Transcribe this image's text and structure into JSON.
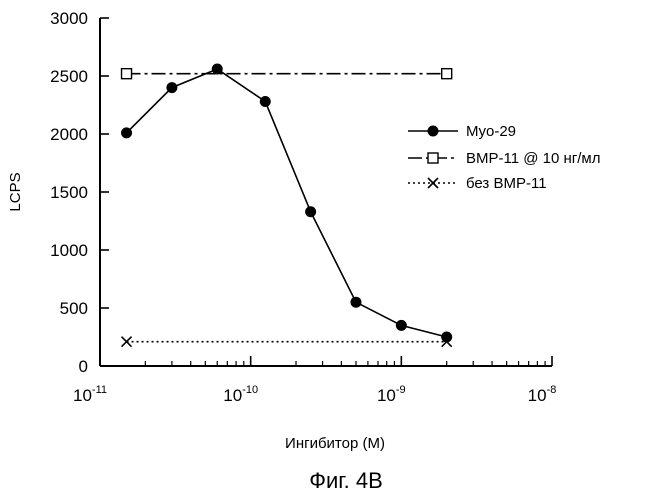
{
  "chart_data": {
    "type": "line",
    "title": "",
    "caption": "Фиг. 4В",
    "xlabel": "Ингибитор (М)",
    "ylabel": "LCPS",
    "xscale": "log",
    "xlim": [
      1e-11,
      1e-08
    ],
    "ylim": [
      0,
      3000
    ],
    "yticks": [
      0,
      500,
      1000,
      1500,
      2000,
      2500,
      3000
    ],
    "xtick_labels": [
      {
        "base": "10",
        "exp": "-11",
        "value": 1e-11
      },
      {
        "base": "10",
        "exp": "-10",
        "value": 1e-10
      },
      {
        "base": "10",
        "exp": "-9",
        "value": 1e-09
      },
      {
        "base": "10",
        "exp": "-8",
        "value": 1e-08
      }
    ],
    "legend_position": "right",
    "series": [
      {
        "name": "Myo-29",
        "marker": "filled-circle",
        "line": "solid",
        "x": [
          1.5e-11,
          3e-11,
          6e-11,
          1.25e-10,
          2.5e-10,
          5e-10,
          1e-09,
          2e-09
        ],
        "y": [
          2010,
          2400,
          2560,
          2280,
          1330,
          550,
          350,
          250
        ]
      },
      {
        "name": "BMP-11 @ 10 нг/мл",
        "marker": "open-square",
        "line": "dash-dot",
        "x": [
          1.5e-11,
          2e-09
        ],
        "y": [
          2520,
          2520
        ]
      },
      {
        "name": "без BMP-11",
        "marker": "x",
        "line": "dotted",
        "x": [
          1.5e-11,
          2e-09
        ],
        "y": [
          210,
          210
        ]
      }
    ]
  }
}
